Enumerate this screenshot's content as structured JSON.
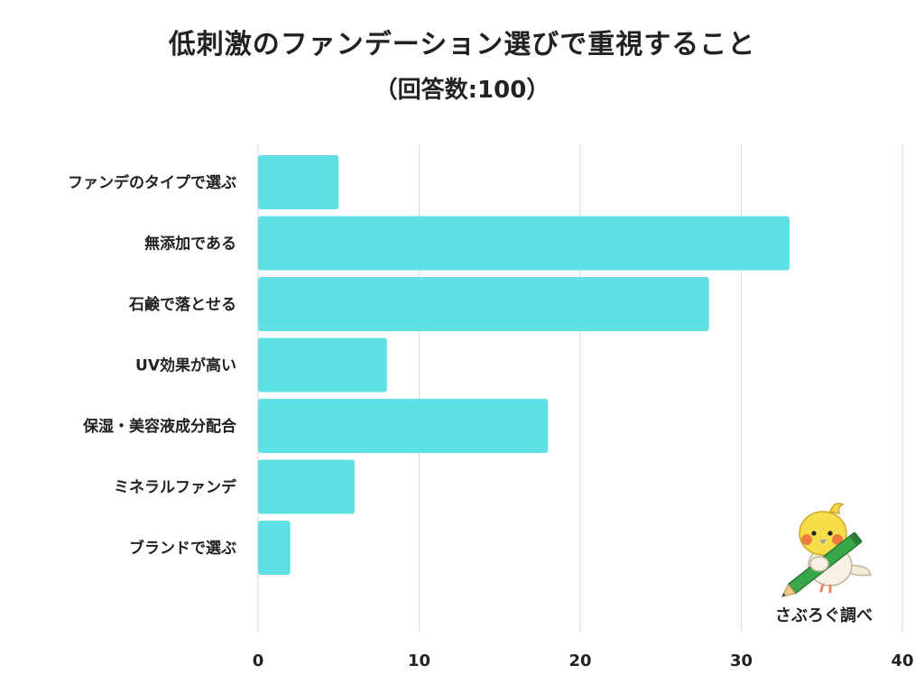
{
  "title": "低刺激のファンデーション選びで重視すること",
  "subtitle": "（回答数:100）",
  "credit": {
    "text": "さぶろぐ調べ",
    "icon": "bird-mascot-with-pencil-icon"
  },
  "colors": {
    "bar": "#5ee0e4",
    "grid": "#dddddd",
    "text": "#222222"
  },
  "chart_data": {
    "type": "bar",
    "orientation": "horizontal",
    "title": "低刺激のファンデーション選びで重視すること",
    "subtitle": "（回答数:100）",
    "categories": [
      "ファンデのタイプで選ぶ",
      "無添加である",
      "石鹸で落とせる",
      "UV効果が高い",
      "保湿・美容液成分配合",
      "ミネラルファンデ",
      "ブランドで選ぶ"
    ],
    "values": [
      5,
      33,
      28,
      8,
      18,
      6,
      2
    ],
    "xlim": [
      0,
      40
    ],
    "xticks": [
      0,
      10,
      20,
      30,
      40
    ],
    "xlabel": "",
    "ylabel": "",
    "grid": "vertical"
  }
}
